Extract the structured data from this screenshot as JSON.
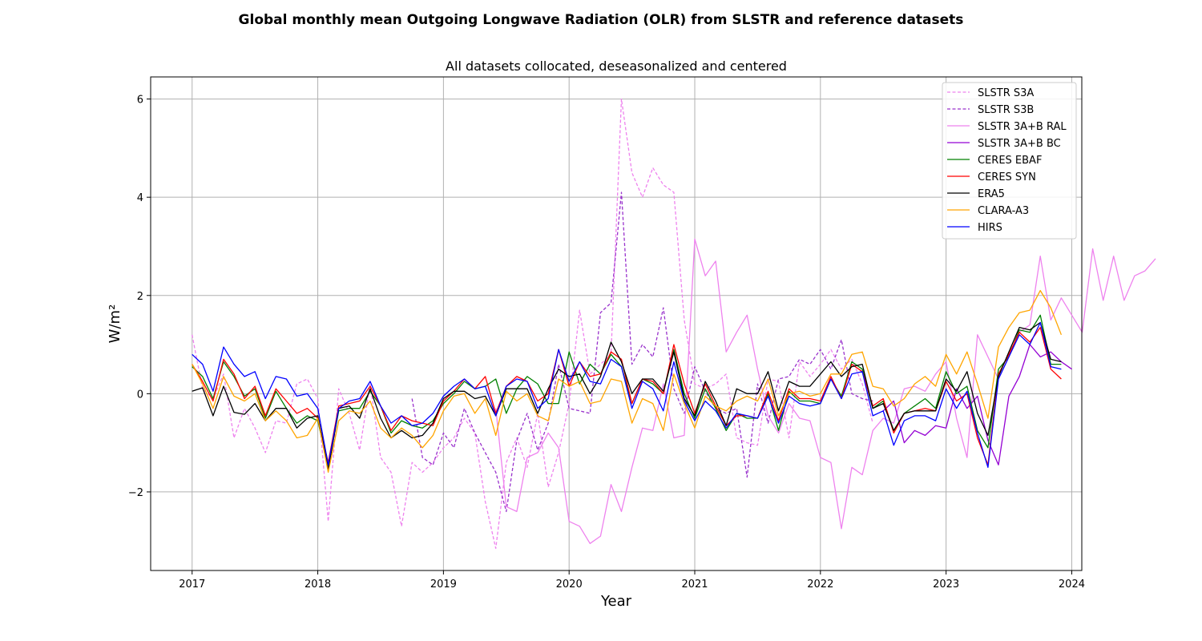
{
  "chart_data": {
    "type": "line",
    "title": "Global monthly mean Outgoing Longwave Radiation (OLR) from SLSTR and reference datasets",
    "subtitle": "All datasets collocated, deseasonalized and centered",
    "xlabel": "Year",
    "ylabel": "W/m²",
    "xlim": [
      2016.67,
      2024.08
    ],
    "ylim": [
      -3.6,
      6.45
    ],
    "x_ticks": [
      2017,
      2018,
      2019,
      2020,
      2021,
      2022,
      2023,
      2024
    ],
    "y_ticks": [
      -2,
      0,
      2,
      4,
      6
    ],
    "y_tick_labels": [
      "−2",
      "0",
      "2",
      "4",
      "6"
    ],
    "grid": true,
    "legend_position": "top-right",
    "series": [
      {
        "name": "SLSTR S3A",
        "color": "#ee82ee",
        "dash": "dashed",
        "start": 2017.0,
        "step": 0.083333,
        "values": [
          1.2,
          0.1,
          -0.1,
          0.4,
          -0.9,
          -0.3,
          -0.7,
          -1.2,
          -0.55,
          -0.6,
          0.2,
          0.3,
          -0.1,
          -2.6,
          0.1,
          -0.4,
          -1.15,
          0.2,
          -1.3,
          -1.6,
          -2.7,
          -1.4,
          -1.6,
          -1.4,
          -1.1,
          -0.9,
          -0.5,
          -0.8,
          -2.2,
          -3.15,
          -1.4,
          -0.9,
          -1.5,
          -0.4,
          -1.9,
          -1.2,
          -0.2,
          1.7,
          0.4,
          0.6,
          0.8,
          6.0,
          4.5,
          4.0,
          4.6,
          4.25,
          4.1,
          1.5,
          0.2,
          0.1,
          0.2,
          0.4,
          -0.9,
          -1.0,
          -1.05,
          0.3,
          0.25,
          -0.9,
          0.65,
          0.35,
          0.6,
          0.9,
          0.5,
          0.7,
          0.2,
          -0.6,
          null,
          null,
          null,
          null,
          null,
          null,
          null,
          null,
          null,
          null,
          null,
          null,
          null,
          null,
          null,
          null,
          null,
          null
        ]
      },
      {
        "name": "SLSTR S3B",
        "color": "#9932cc",
        "dash": "dashed",
        "start": 2017.0,
        "step": 0.083333,
        "values": [
          null,
          null,
          null,
          null,
          null,
          null,
          null,
          null,
          null,
          null,
          null,
          null,
          null,
          null,
          null,
          null,
          null,
          null,
          null,
          null,
          null,
          -0.1,
          -1.3,
          -1.45,
          -0.8,
          -1.1,
          -0.3,
          -0.8,
          -1.2,
          -1.6,
          -2.4,
          -0.95,
          -0.4,
          -1.15,
          -0.6,
          0.6,
          -0.3,
          -0.35,
          -0.4,
          1.65,
          1.85,
          4.1,
          0.6,
          1.0,
          0.75,
          1.75,
          0.1,
          -0.4,
          0.55,
          0.05,
          -0.3,
          -0.4,
          -0.3,
          -1.7,
          0.2,
          -0.6,
          0.3,
          0.35,
          0.7,
          0.6,
          0.9,
          0.5,
          1.1,
          0.0,
          -0.1,
          -0.15,
          null,
          null,
          null,
          null,
          null,
          null,
          null,
          null,
          null,
          null,
          null,
          null,
          null,
          null,
          null,
          null,
          null,
          null
        ]
      },
      {
        "name": "SLSTR 3A+B RAL",
        "color": "#ee82ee",
        "dash": "solid",
        "start": 2018.0,
        "step": 0.083333,
        "values": [
          null,
          null,
          null,
          null,
          null,
          null,
          null,
          null,
          null,
          null,
          null,
          null,
          null,
          null,
          null,
          null,
          null,
          -0.3,
          -2.3,
          -2.4,
          -1.3,
          -1.2,
          -0.8,
          -1.1,
          -2.6,
          -2.7,
          -3.05,
          -2.9,
          -1.85,
          -2.4,
          -1.5,
          -0.7,
          -0.75,
          0.2,
          -0.9,
          -0.85,
          3.15,
          2.4,
          2.7,
          0.85,
          1.25,
          1.6,
          0.5,
          -0.45,
          -0.8,
          -0.2,
          -0.5,
          -0.55,
          -1.3,
          -1.4,
          -2.75,
          -1.5,
          -1.65,
          -0.75,
          -0.5,
          -0.6,
          0.1,
          0.15,
          0.05,
          0.4,
          0.65,
          -0.5,
          -1.3,
          1.2,
          0.75,
          0.3,
          0.75,
          1.25,
          1.4,
          2.8,
          1.5,
          1.95,
          1.6,
          1.25,
          2.95,
          1.9,
          2.8,
          1.9,
          2.4,
          2.5,
          2.75
        ]
      },
      {
        "name": "SLSTR 3A+B BC",
        "color": "#9400d3",
        "dash": "solid",
        "start": 2022.5,
        "step": 0.083333,
        "values": [
          -0.35,
          -0.15,
          -1.0,
          -0.75,
          -0.85,
          -0.65,
          -0.7,
          0.1,
          -0.3,
          -0.05,
          -0.95,
          -1.45,
          -0.05,
          0.35,
          1.0,
          0.75,
          0.85,
          0.65,
          0.5
        ]
      },
      {
        "name": "CERES EBAF",
        "color": "#008000",
        "dash": "solid",
        "start": 2017.0,
        "step": 0.083333,
        "values": [
          0.55,
          0.35,
          -0.1,
          0.65,
          0.35,
          -0.05,
          0.1,
          -0.5,
          0.05,
          -0.3,
          -0.6,
          -0.45,
          -0.55,
          -1.5,
          -0.35,
          -0.3,
          -0.3,
          0.05,
          -0.25,
          -0.8,
          -0.55,
          -0.65,
          -0.7,
          -0.55,
          -0.2,
          0.0,
          0.25,
          0.1,
          0.15,
          0.3,
          -0.4,
          0.1,
          0.35,
          0.2,
          -0.2,
          -0.2,
          0.85,
          0.2,
          0.6,
          0.4,
          0.8,
          0.55,
          -0.2,
          0.3,
          0.2,
          0.0,
          0.9,
          0.0,
          -0.5,
          0.1,
          -0.3,
          -0.75,
          -0.4,
          -0.5,
          -0.5,
          0.0,
          -0.75,
          0.05,
          -0.15,
          -0.15,
          -0.2,
          0.3,
          -0.05,
          0.65,
          0.5,
          -0.3,
          -0.15,
          -0.75,
          -0.4,
          -0.25,
          -0.1,
          -0.3,
          0.45,
          0.0,
          0.15,
          -0.75,
          -1.1,
          0.5,
          0.75,
          1.3,
          1.25,
          1.6,
          0.6,
          0.6
        ]
      },
      {
        "name": "CERES SYN",
        "color": "#ff0000",
        "dash": "solid",
        "start": 2017.0,
        "step": 0.083333,
        "values": [
          0.6,
          0.25,
          -0.15,
          0.7,
          0.4,
          -0.1,
          0.15,
          -0.45,
          0.1,
          -0.15,
          -0.4,
          -0.3,
          -0.5,
          -1.4,
          -0.25,
          -0.2,
          -0.15,
          0.15,
          -0.25,
          -0.75,
          -0.45,
          -0.55,
          -0.6,
          -0.65,
          -0.15,
          0.05,
          0.3,
          0.1,
          0.35,
          -0.4,
          0.15,
          0.35,
          0.25,
          -0.15,
          0.0,
          0.9,
          0.15,
          0.65,
          0.35,
          0.4,
          0.85,
          0.7,
          -0.2,
          0.3,
          0.25,
          0.0,
          1.0,
          0.2,
          -0.4,
          0.2,
          -0.25,
          -0.65,
          -0.45,
          -0.45,
          -0.5,
          0.05,
          -0.55,
          0.1,
          -0.1,
          -0.1,
          -0.15,
          0.35,
          -0.1,
          0.6,
          0.45,
          -0.25,
          -0.1,
          -0.8,
          -0.4,
          -0.35,
          -0.3,
          -0.35,
          0.25,
          -0.15,
          0.0,
          -0.9,
          -1.45,
          0.4,
          0.8,
          1.25,
          1.05,
          1.35,
          0.5,
          0.3
        ]
      },
      {
        "name": "ERA5",
        "color": "#000000",
        "dash": "solid",
        "start": 2017.0,
        "step": 0.083333,
        "values": [
          0.05,
          0.12,
          -0.45,
          0.15,
          -0.38,
          -0.42,
          -0.2,
          -0.55,
          -0.3,
          -0.3,
          -0.7,
          -0.5,
          -0.45,
          -1.55,
          -0.3,
          -0.25,
          -0.5,
          0.1,
          -0.5,
          -0.9,
          -0.75,
          -0.9,
          -0.85,
          -0.6,
          -0.1,
          0.05,
          0.05,
          -0.1,
          -0.05,
          -0.45,
          0.1,
          0.1,
          0.1,
          -0.4,
          0.1,
          0.5,
          0.35,
          0.4,
          0.0,
          0.35,
          1.05,
          0.65,
          0.0,
          0.3,
          0.3,
          0.05,
          0.85,
          -0.1,
          -0.45,
          0.25,
          -0.15,
          -0.65,
          0.1,
          0.0,
          0.0,
          0.45,
          -0.35,
          0.25,
          0.15,
          0.15,
          0.4,
          0.65,
          0.35,
          0.55,
          0.6,
          -0.3,
          -0.2,
          -0.75,
          -0.4,
          -0.35,
          -0.35,
          -0.35,
          0.3,
          0.05,
          0.45,
          -0.4,
          -0.85,
          0.35,
          0.85,
          1.35,
          1.3,
          1.45,
          0.7,
          0.65
        ]
      },
      {
        "name": "CLARA-A3",
        "color": "#ffa500",
        "dash": "solid",
        "start": 2017.0,
        "step": 0.083333,
        "values": [
          0.6,
          0.2,
          -0.3,
          0.35,
          -0.05,
          -0.15,
          0.0,
          -0.55,
          -0.35,
          -0.55,
          -0.9,
          -0.85,
          -0.5,
          -1.6,
          -0.55,
          -0.35,
          -0.4,
          -0.15,
          -0.7,
          -0.9,
          -0.7,
          -0.85,
          -1.1,
          -0.85,
          -0.35,
          -0.05,
          0.0,
          -0.4,
          -0.1,
          -0.85,
          0.05,
          -0.15,
          0.0,
          -0.45,
          -0.55,
          0.3,
          0.15,
          0.25,
          -0.2,
          -0.15,
          0.3,
          0.25,
          -0.6,
          -0.1,
          -0.2,
          -0.75,
          0.4,
          -0.2,
          -0.7,
          -0.05,
          -0.25,
          -0.35,
          -0.15,
          -0.05,
          -0.15,
          0.3,
          -0.45,
          0.0,
          0.05,
          -0.05,
          0.0,
          0.4,
          0.4,
          0.8,
          0.85,
          0.15,
          0.1,
          -0.25,
          -0.1,
          0.2,
          0.35,
          0.15,
          0.8,
          0.4,
          0.85,
          0.2,
          -0.5,
          0.95,
          1.35,
          1.65,
          1.7,
          2.1,
          1.75,
          1.2
        ]
      },
      {
        "name": "HIRS",
        "color": "#0000ff",
        "dash": "solid",
        "start": 2017.0,
        "step": 0.083333,
        "values": [
          0.8,
          0.6,
          0.05,
          0.95,
          0.6,
          0.35,
          0.45,
          -0.1,
          0.35,
          0.3,
          -0.05,
          0.0,
          -0.3,
          -1.45,
          -0.3,
          -0.15,
          -0.1,
          0.25,
          -0.25,
          -0.6,
          -0.45,
          -0.65,
          -0.6,
          -0.4,
          -0.05,
          0.15,
          0.3,
          0.1,
          0.15,
          -0.45,
          0.15,
          0.3,
          0.25,
          -0.3,
          -0.1,
          0.9,
          0.25,
          0.65,
          0.25,
          0.2,
          0.7,
          0.55,
          -0.3,
          0.25,
          0.1,
          -0.35,
          0.65,
          -0.15,
          -0.55,
          -0.15,
          -0.35,
          -0.7,
          -0.4,
          -0.45,
          -0.5,
          -0.05,
          -0.6,
          -0.05,
          -0.2,
          -0.25,
          -0.2,
          0.3,
          -0.1,
          0.4,
          0.45,
          -0.45,
          -0.35,
          -1.05,
          -0.55,
          -0.45,
          -0.45,
          -0.55,
          0.1,
          -0.3,
          0.05,
          -0.8,
          -1.5,
          0.3,
          0.75,
          1.2,
          1.0,
          1.45,
          0.55,
          0.5
        ]
      }
    ]
  }
}
